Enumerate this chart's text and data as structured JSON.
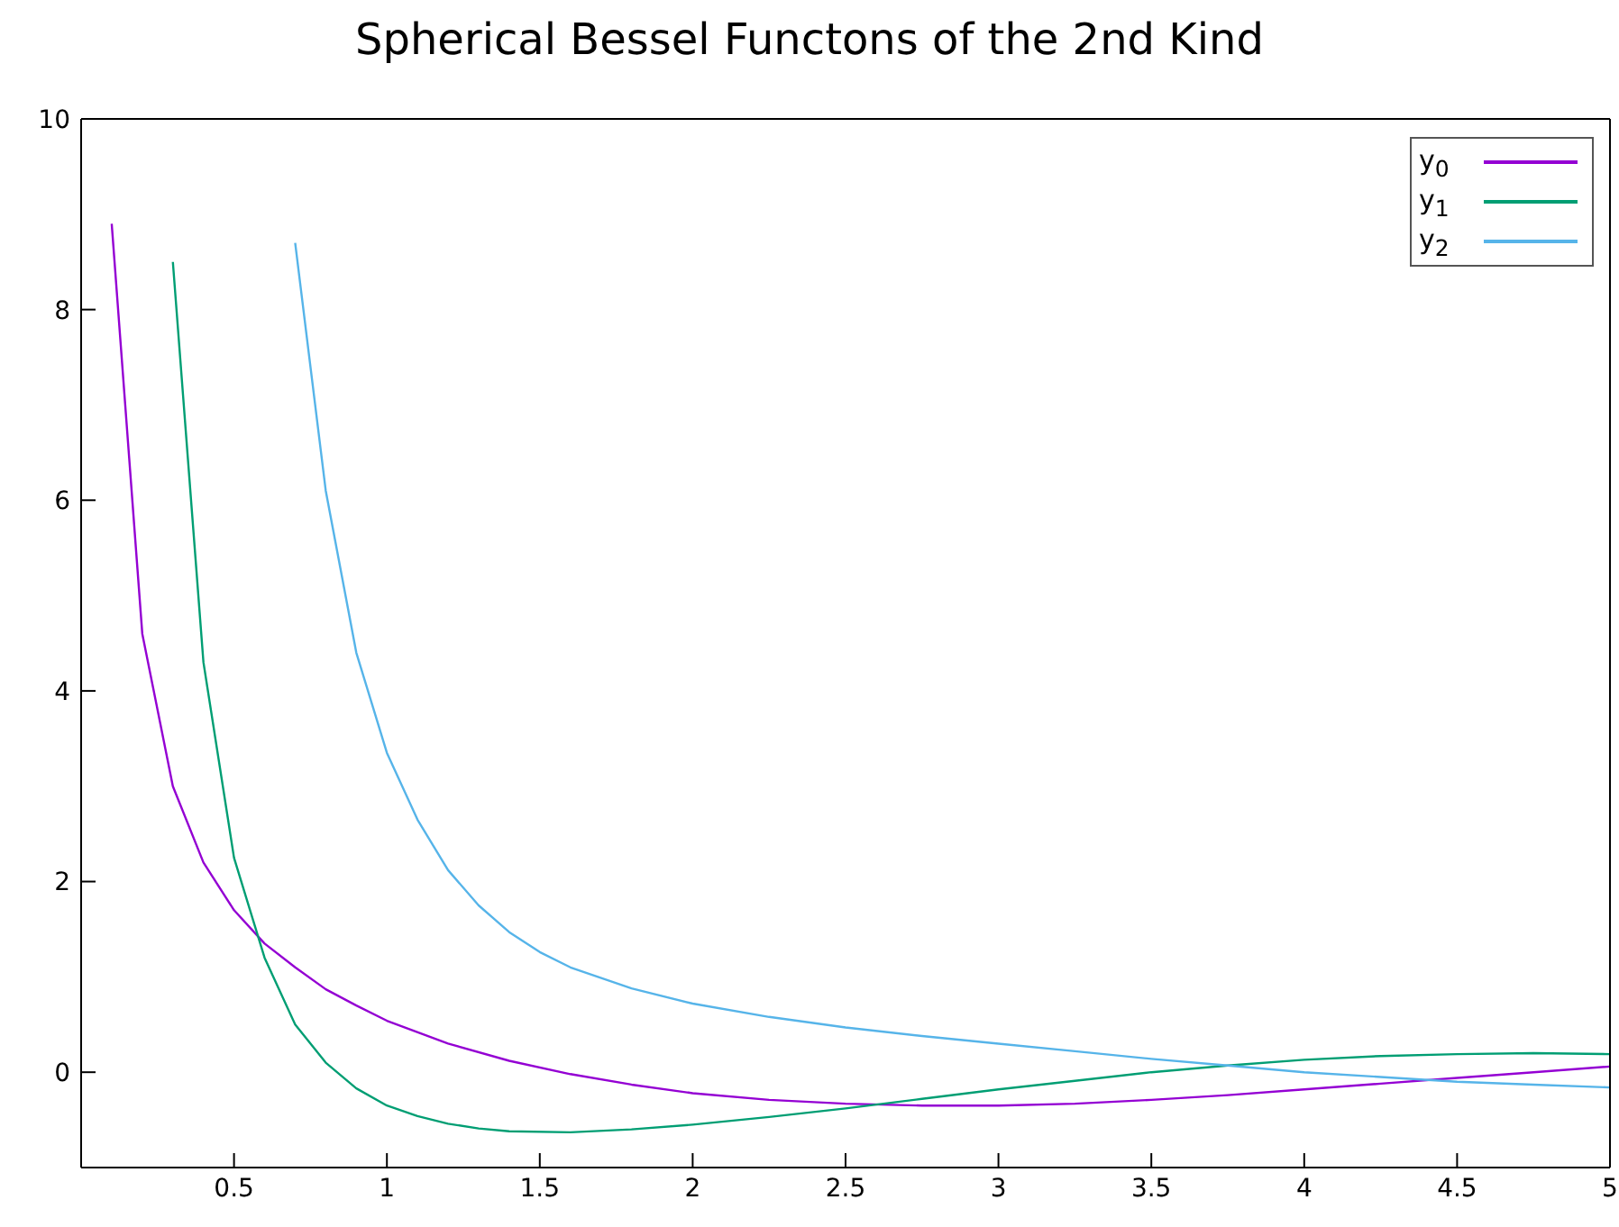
{
  "chart_data": {
    "type": "line",
    "title": "Spherical Bessel Functons of the 2nd Kind",
    "xlim": [
      0,
      5
    ],
    "xticks": [
      0.5,
      1,
      1.5,
      2,
      2.5,
      3,
      3.5,
      4,
      4.5,
      5
    ],
    "ylim": [
      -1,
      10
    ],
    "yticks": [
      0,
      2,
      4,
      6,
      8,
      10
    ],
    "legend": "top right",
    "marker": "none",
    "line_style": "solid",
    "series": [
      {
        "name": "y$_{0}$",
        "color": "#9400d3",
        "x": [
          0.1,
          0.2,
          0.3,
          0.4,
          0.5,
          0.6,
          0.7,
          0.8,
          0.9,
          1.0,
          1.2,
          1.4,
          1.6,
          1.8,
          2.0,
          2.25,
          2.5,
          2.75,
          3.0,
          3.25,
          3.5,
          3.75,
          4.0,
          4.25,
          4.5,
          4.75,
          5.0
        ],
        "values": [
          8.9,
          4.6,
          3.0,
          2.2,
          1.7,
          1.35,
          1.1,
          0.87,
          0.7,
          0.54,
          0.3,
          0.12,
          -0.02,
          -0.13,
          -0.22,
          -0.29,
          -0.33,
          -0.35,
          -0.35,
          -0.33,
          -0.29,
          -0.24,
          -0.18,
          -0.12,
          -0.06,
          0.0,
          0.06
        ]
      },
      {
        "name": "y$_{1}$",
        "color": "#009e73",
        "x": [
          0.3,
          0.4,
          0.5,
          0.6,
          0.7,
          0.8,
          0.9,
          1.0,
          1.1,
          1.2,
          1.3,
          1.4,
          1.6,
          1.8,
          2.0,
          2.25,
          2.5,
          2.75,
          3.0,
          3.25,
          3.5,
          3.75,
          4.0,
          4.25,
          4.5,
          4.75,
          5.0
        ],
        "values": [
          8.5,
          4.3,
          2.25,
          1.2,
          0.5,
          0.1,
          -0.17,
          -0.35,
          -0.46,
          -0.54,
          -0.59,
          -0.62,
          -0.63,
          -0.6,
          -0.55,
          -0.47,
          -0.38,
          -0.28,
          -0.18,
          -0.09,
          0.0,
          0.07,
          0.13,
          0.17,
          0.19,
          0.2,
          0.19
        ]
      },
      {
        "name": "y$_{2}$",
        "color": "#56b4e9",
        "x": [
          0.7,
          0.8,
          0.9,
          1.0,
          1.1,
          1.2,
          1.3,
          1.4,
          1.5,
          1.6,
          1.8,
          2.0,
          2.25,
          2.5,
          2.75,
          3.0,
          3.25,
          3.5,
          3.75,
          4.0,
          4.25,
          4.5,
          4.75,
          5.0
        ],
        "values": [
          8.7,
          6.1,
          4.4,
          3.35,
          2.65,
          2.12,
          1.75,
          1.47,
          1.26,
          1.1,
          0.88,
          0.72,
          0.58,
          0.47,
          0.38,
          0.3,
          0.22,
          0.14,
          0.07,
          0.0,
          -0.05,
          -0.1,
          -0.13,
          -0.16
        ]
      }
    ]
  }
}
